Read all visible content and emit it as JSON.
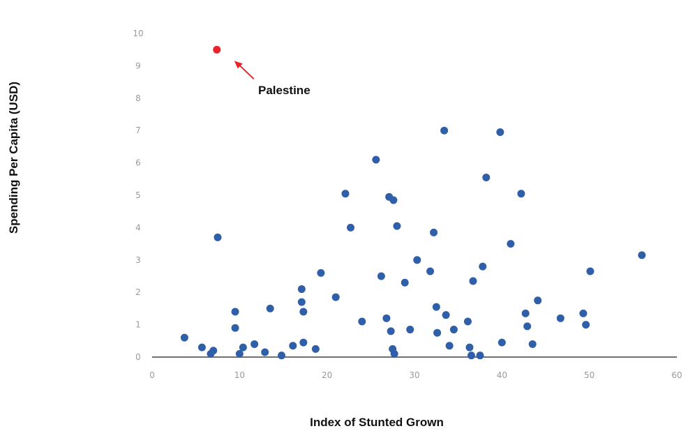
{
  "chart_data": {
    "type": "scatter",
    "xlabel": "Index of Stunted Grown",
    "ylabel": "Spending Per Capita (USD)",
    "xlim": [
      0,
      60
    ],
    "ylim": [
      0,
      10
    ],
    "x_ticks": [
      "0",
      "10",
      "20",
      "30",
      "40",
      "50",
      "60"
    ],
    "y_ticks": [
      "0",
      "1",
      "2",
      "3",
      "4",
      "5",
      "6",
      "7",
      "8",
      "9",
      "10"
    ],
    "grid": false,
    "colors": {
      "points": "#2e5fa8",
      "highlight": "#e8232a",
      "axis": "#707070",
      "ticks": "#9a9a9a"
    },
    "highlight": {
      "label": "Palestine",
      "x": 7.4,
      "y": 9.5
    },
    "points": [
      {
        "x": 3.7,
        "y": 0.6
      },
      {
        "x": 5.7,
        "y": 0.3
      },
      {
        "x": 6.7,
        "y": 0.1
      },
      {
        "x": 7.0,
        "y": 0.2
      },
      {
        "x": 7.5,
        "y": 3.7
      },
      {
        "x": 9.5,
        "y": 1.4
      },
      {
        "x": 9.5,
        "y": 0.9
      },
      {
        "x": 10.0,
        "y": 0.1
      },
      {
        "x": 10.4,
        "y": 0.3
      },
      {
        "x": 11.7,
        "y": 0.4
      },
      {
        "x": 12.9,
        "y": 0.15
      },
      {
        "x": 13.5,
        "y": 1.5
      },
      {
        "x": 14.8,
        "y": 0.05
      },
      {
        "x": 16.1,
        "y": 0.35
      },
      {
        "x": 17.1,
        "y": 2.1
      },
      {
        "x": 17.1,
        "y": 1.7
      },
      {
        "x": 17.3,
        "y": 1.4
      },
      {
        "x": 17.3,
        "y": 0.45
      },
      {
        "x": 18.7,
        "y": 0.25
      },
      {
        "x": 19.3,
        "y": 2.6
      },
      {
        "x": 21.0,
        "y": 1.85
      },
      {
        "x": 22.1,
        "y": 5.05
      },
      {
        "x": 22.7,
        "y": 4.0
      },
      {
        "x": 24.0,
        "y": 1.1
      },
      {
        "x": 25.6,
        "y": 6.1
      },
      {
        "x": 26.2,
        "y": 2.5
      },
      {
        "x": 26.8,
        "y": 1.2
      },
      {
        "x": 27.1,
        "y": 4.95
      },
      {
        "x": 27.3,
        "y": 0.8
      },
      {
        "x": 27.5,
        "y": 0.25
      },
      {
        "x": 27.6,
        "y": 4.85
      },
      {
        "x": 27.7,
        "y": 0.1
      },
      {
        "x": 28.0,
        "y": 4.05
      },
      {
        "x": 28.9,
        "y": 2.3
      },
      {
        "x": 29.5,
        "y": 0.85
      },
      {
        "x": 30.3,
        "y": 3.0
      },
      {
        "x": 31.8,
        "y": 2.65
      },
      {
        "x": 32.2,
        "y": 3.85
      },
      {
        "x": 32.5,
        "y": 1.55
      },
      {
        "x": 32.6,
        "y": 0.75
      },
      {
        "x": 33.4,
        "y": 7.0
      },
      {
        "x": 33.6,
        "y": 1.3
      },
      {
        "x": 34.0,
        "y": 0.35
      },
      {
        "x": 34.5,
        "y": 0.85
      },
      {
        "x": 36.1,
        "y": 1.1
      },
      {
        "x": 36.3,
        "y": 0.3
      },
      {
        "x": 36.5,
        "y": 0.05
      },
      {
        "x": 36.7,
        "y": 2.35
      },
      {
        "x": 37.5,
        "y": 0.05
      },
      {
        "x": 37.8,
        "y": 2.8
      },
      {
        "x": 38.2,
        "y": 5.55
      },
      {
        "x": 39.8,
        "y": 6.95
      },
      {
        "x": 40.0,
        "y": 0.45
      },
      {
        "x": 41.0,
        "y": 3.5
      },
      {
        "x": 42.2,
        "y": 5.05
      },
      {
        "x": 42.7,
        "y": 1.35
      },
      {
        "x": 42.9,
        "y": 0.95
      },
      {
        "x": 43.5,
        "y": 0.4
      },
      {
        "x": 44.1,
        "y": 1.75
      },
      {
        "x": 46.7,
        "y": 1.2
      },
      {
        "x": 49.3,
        "y": 1.35
      },
      {
        "x": 49.6,
        "y": 1.0
      },
      {
        "x": 50.1,
        "y": 2.65
      },
      {
        "x": 56.0,
        "y": 3.15
      }
    ]
  }
}
